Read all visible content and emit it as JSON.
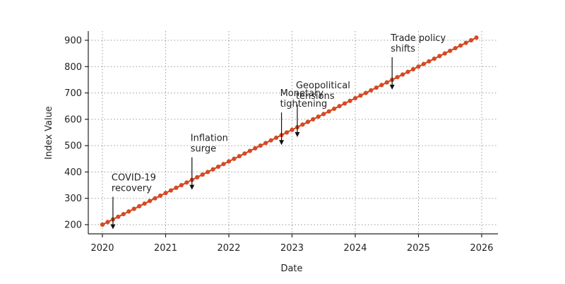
{
  "chart_data": {
    "type": "line",
    "xlabel": "Date",
    "ylabel": "Index Value",
    "xlim": [
      "2020-01-01",
      "2026-03-01"
    ],
    "ylim": [
      170,
      935
    ],
    "x_ticks": [
      "2020",
      "2021",
      "2022",
      "2023",
      "2024",
      "2025",
      "2026"
    ],
    "y_ticks": [
      200,
      300,
      400,
      500,
      600,
      700,
      800,
      900
    ],
    "grid": true,
    "marker_color": "#d64a22",
    "line_color": "#c8401e",
    "series": [
      {
        "x_start": "2020-01",
        "x_end": "2025-12",
        "frequency": "monthly",
        "values": [
          200,
          210,
          220,
          230,
          240,
          250,
          260,
          270,
          280,
          290,
          300,
          310,
          320,
          330,
          340,
          350,
          360,
          370,
          380,
          390,
          400,
          410,
          420,
          430,
          440,
          450,
          460,
          470,
          480,
          490,
          500,
          510,
          520,
          530,
          540,
          550,
          560,
          570,
          580,
          590,
          600,
          610,
          620,
          630,
          640,
          650,
          660,
          670,
          680,
          690,
          700,
          710,
          720,
          730,
          740,
          750,
          760,
          770,
          780,
          790,
          800,
          810,
          820,
          830,
          840,
          850,
          860,
          870,
          880,
          890,
          900,
          910
        ]
      }
    ],
    "annotations": [
      {
        "text": [
          "COVID-19",
          "recovery"
        ],
        "x": "2020-03"
      },
      {
        "text": [
          "Inflation",
          "surge"
        ],
        "x": "2021-06"
      },
      {
        "text": [
          "Monetary",
          "tightening"
        ],
        "x": "2022-11"
      },
      {
        "text": [
          "Geopolitical",
          "tensions"
        ],
        "x": "2023-02"
      },
      {
        "text": [
          "Trade policy",
          "shifts"
        ],
        "x": "2024-08"
      }
    ]
  }
}
